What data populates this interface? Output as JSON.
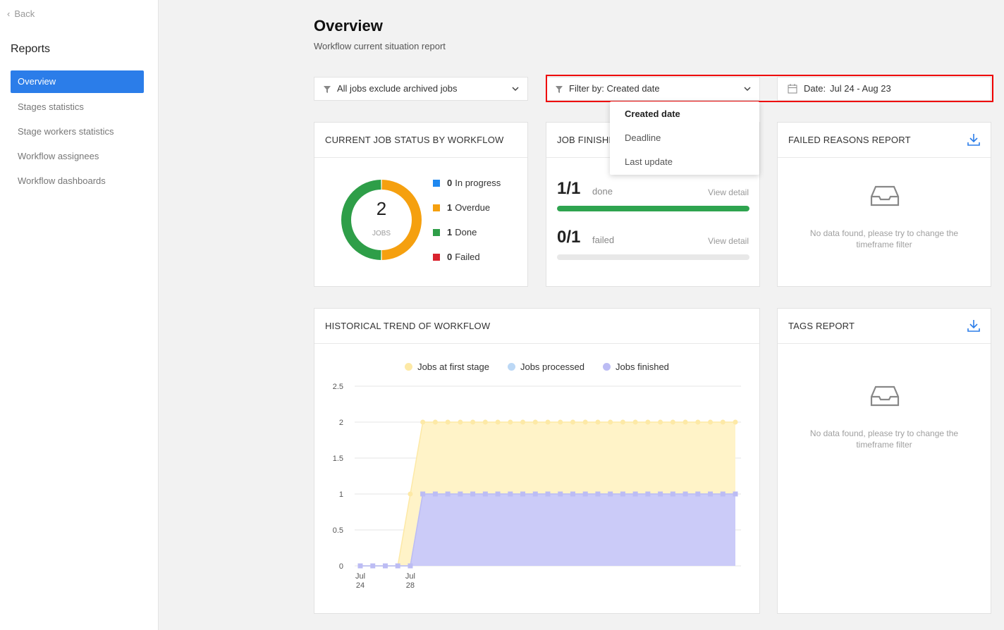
{
  "sidebar": {
    "back": "Back",
    "title": "Reports",
    "nav": [
      "Overview",
      "Stages statistics",
      "Stage workers statistics",
      "Workflow assignees",
      "Workflow dashboards"
    ],
    "active": 0
  },
  "header": {
    "title": "Overview",
    "subtitle": "Workflow current situation report"
  },
  "filters": {
    "jobs": "All jobs exclude archived jobs",
    "filter_by": "Filter by: Created date",
    "date_label": "Date:",
    "date_value": "Jul 24 - Aug 23"
  },
  "dropdown": {
    "options": [
      "Created date",
      "Deadline",
      "Last update"
    ]
  },
  "job_finished": {
    "title": "JOB FINISHED",
    "rows": [
      {
        "ratio": "1/1",
        "label": "done",
        "link": "View detail",
        "count": 1,
        "total": 1,
        "color": "#2ea44f"
      },
      {
        "ratio": "0/1",
        "label": "failed",
        "link": "View detail",
        "count": 0,
        "total": 1,
        "color": "#e0474c"
      }
    ]
  },
  "failed_reasons": {
    "title": "FAILED REASONS REPORT",
    "empty_text": "No data found, please try to change the timeframe filter"
  },
  "tags": {
    "title": "TAGS REPORT",
    "empty_text": "No data found, please try to change the timeframe filter"
  },
  "chart_data": [
    {
      "type": "donut",
      "title": "CURRENT JOB STATUS BY WORKFLOW",
      "center_value": 2,
      "center_label": "JOBS",
      "categories": [
        "In progress",
        "Overdue",
        "Done",
        "Failed"
      ],
      "values": [
        0,
        1,
        1,
        0
      ],
      "colors": [
        "#1e88f0",
        "#f5a00f",
        "#2e9e48",
        "#d9232e"
      ]
    },
    {
      "type": "area",
      "title": "HISTORICAL TREND OF WORKFLOW",
      "categories": [
        "Jul 24",
        null,
        null,
        null,
        "Jul 28",
        null,
        null,
        null,
        null,
        null,
        null,
        null,
        null,
        null,
        null,
        null,
        null,
        null,
        null,
        null,
        null,
        null,
        null,
        null,
        null,
        null,
        null,
        null,
        null,
        null,
        null
      ],
      "series": [
        {
          "name": "Jobs at first stage",
          "color": "#fde9a6",
          "fill": "#fff3c8",
          "marker": "circle",
          "values": [
            0,
            0,
            0,
            0,
            1,
            2,
            2,
            2,
            2,
            2,
            2,
            2,
            2,
            2,
            2,
            2,
            2,
            2,
            2,
            2,
            2,
            2,
            2,
            2,
            2,
            2,
            2,
            2,
            2,
            2,
            2
          ]
        },
        {
          "name": "Jobs processed",
          "color": "#bcd8f5",
          "fill": "#d8e8fa",
          "marker": "circle",
          "values": [
            0,
            0,
            0,
            0,
            0,
            1,
            1,
            1,
            1,
            1,
            1,
            1,
            1,
            1,
            1,
            1,
            1,
            1,
            1,
            1,
            1,
            1,
            1,
            1,
            1,
            1,
            1,
            1,
            1,
            1,
            1
          ]
        },
        {
          "name": "Jobs finished",
          "color": "#bcbcf4",
          "fill": "#cbcbf8",
          "marker": "square",
          "values": [
            0,
            0,
            0,
            0,
            0,
            1,
            1,
            1,
            1,
            1,
            1,
            1,
            1,
            1,
            1,
            1,
            1,
            1,
            1,
            1,
            1,
            1,
            1,
            1,
            1,
            1,
            1,
            1,
            1,
            1,
            1
          ]
        }
      ],
      "ylim": [
        0,
        2.5
      ],
      "yticks": [
        0,
        0.5,
        1,
        1.5,
        2,
        2.5
      ],
      "grid": true
    }
  ]
}
